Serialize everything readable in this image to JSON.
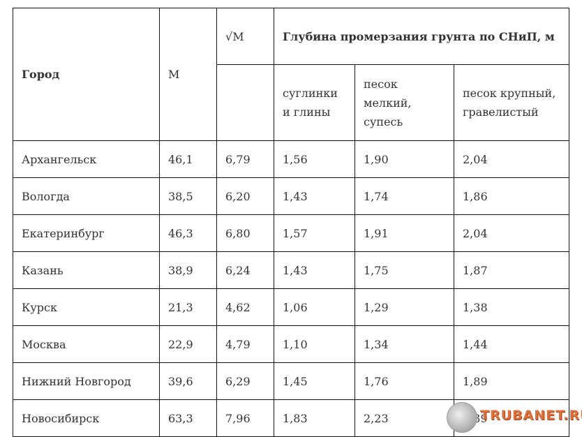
{
  "table": {
    "headers": {
      "city": "Город",
      "m": "M",
      "sqrt_m": "√M",
      "depth_group": "Глубина промерзания грунта по СНиП, м",
      "sub": [
        "суглинки и глины",
        "песок мелкий, супесь",
        "песок крупный, гравелистый"
      ]
    },
    "rows": [
      [
        "Архангельск",
        "46,1",
        "6,79",
        "1,56",
        "1,90",
        "2,04"
      ],
      [
        "Вологда",
        "38,5",
        "6,20",
        "1,43",
        "1,74",
        "1,86"
      ],
      [
        "Екатеринбург",
        "46,3",
        "6,80",
        "1,57",
        "1,91",
        "2,04"
      ],
      [
        "Казань",
        "38,9",
        "6,24",
        "1,43",
        "1,75",
        "1,87"
      ],
      [
        "Курск",
        "21,3",
        "4,62",
        "1,06",
        "1,29",
        "1,38"
      ],
      [
        "Москва",
        "22,9",
        "4,79",
        "1,10",
        "1,34",
        "1,44"
      ],
      [
        "Нижний Новгород",
        "39,6",
        "6,29",
        "1,45",
        "1,76",
        "1,89"
      ],
      [
        "Новосибирск",
        "63,3",
        "7,96",
        "1,83",
        "2,23",
        "2,39"
      ]
    ]
  },
  "watermark": "TRUBANET.RU"
}
